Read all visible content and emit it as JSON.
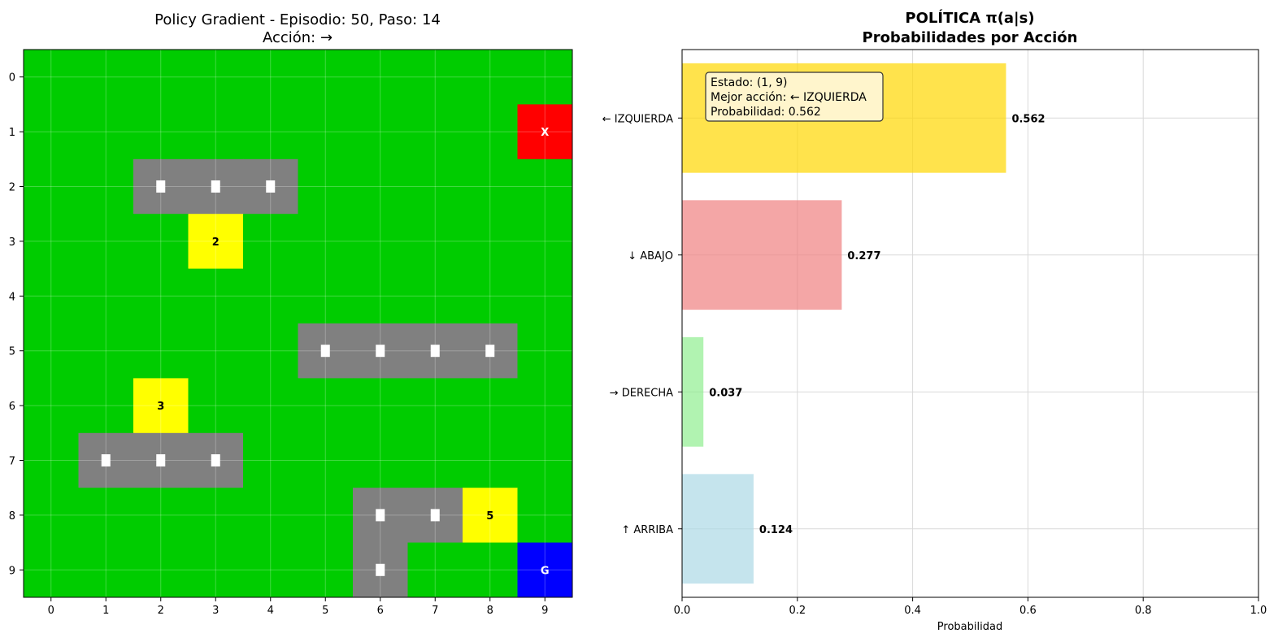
{
  "colors": {
    "free": "#00cc00",
    "wall": "#808080",
    "car": "#ffffff",
    "bonus": "#ffff00",
    "agent": "#ff0000",
    "goal": "#0000ff",
    "grid": "#ffffff",
    "frame": "#000000",
    "infobox_bg": "#fff5cc"
  },
  "chart_data": [
    {
      "type": "heatmap",
      "title_line1": "Policy Gradient - Episodio: 50, Paso: 14",
      "title_line2": "Acción: →",
      "xlabel": "",
      "ylabel": "",
      "rows": 10,
      "cols": 10,
      "x_ticks": [
        "0",
        "1",
        "2",
        "3",
        "4",
        "5",
        "6",
        "7",
        "8",
        "9"
      ],
      "y_ticks": [
        "0",
        "1",
        "2",
        "3",
        "4",
        "5",
        "6",
        "7",
        "8",
        "9"
      ],
      "grid": true,
      "walls": [
        [
          2,
          2
        ],
        [
          2,
          3
        ],
        [
          2,
          4
        ],
        [
          5,
          5
        ],
        [
          5,
          6
        ],
        [
          5,
          7
        ],
        [
          5,
          8
        ],
        [
          7,
          1
        ],
        [
          7,
          2
        ],
        [
          7,
          3
        ],
        [
          8,
          6
        ],
        [
          8,
          7
        ],
        [
          9,
          6
        ]
      ],
      "cars": [
        [
          2,
          2
        ],
        [
          2,
          3
        ],
        [
          2,
          4
        ],
        [
          5,
          5
        ],
        [
          5,
          6
        ],
        [
          5,
          7
        ],
        [
          5,
          8
        ],
        [
          7,
          1
        ],
        [
          7,
          2
        ],
        [
          7,
          3
        ],
        [
          8,
          6
        ],
        [
          8,
          7
        ],
        [
          9,
          6
        ]
      ],
      "bonuses": [
        {
          "row": 3,
          "col": 3,
          "label": "2"
        },
        {
          "row": 6,
          "col": 2,
          "label": "3"
        },
        {
          "row": 8,
          "col": 8,
          "label": "5"
        }
      ],
      "agent": {
        "row": 1,
        "col": 9,
        "label": "X"
      },
      "goal": {
        "row": 9,
        "col": 9,
        "label": "G"
      }
    },
    {
      "type": "bar",
      "orientation": "horizontal",
      "title_line1": "POLÍTICA π(a|s)",
      "title_line2": "Probabilidades por Acción",
      "xlabel": "Probabilidad",
      "ylabel": "",
      "xlim": [
        0,
        1.0
      ],
      "x_ticks": [
        "0.0",
        "0.2",
        "0.4",
        "0.6",
        "0.8",
        "1.0"
      ],
      "grid": true,
      "categories": [
        "↑ ARRIBA",
        "→ DERECHA",
        "↓ ABAJO",
        "← IZQUIERDA"
      ],
      "values": [
        0.124,
        0.037,
        0.277,
        0.562
      ],
      "value_labels": [
        "0.124",
        "0.037",
        "0.277",
        "0.562"
      ],
      "bar_colors": [
        "#add8e6",
        "#90ee90",
        "#f08080",
        "#ffd700"
      ],
      "infobox": {
        "line1": "Estado: (1, 9)",
        "line2": "Mejor acción: ← IZQUIERDA",
        "line3": "Probabilidad: 0.562"
      }
    }
  ]
}
